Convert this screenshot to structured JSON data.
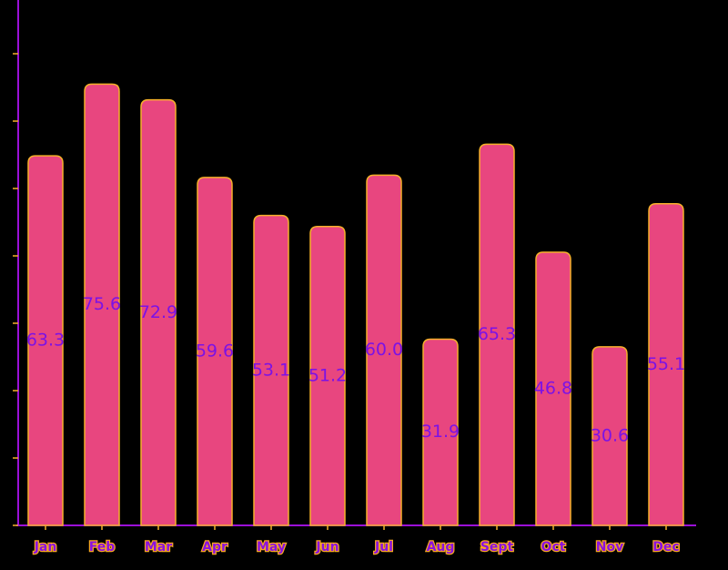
{
  "chart_data": {
    "type": "bar",
    "categories": [
      "Jan",
      "Feb",
      "Mar",
      "Apr",
      "May",
      "Jun",
      "Jul",
      "Aug",
      "Sept",
      "Oct",
      "Nov",
      "Dec"
    ],
    "values": [
      63.3,
      75.6,
      72.9,
      59.6,
      53.1,
      51.2,
      60.0,
      31.9,
      65.3,
      46.8,
      30.6,
      55.1
    ],
    "value_labels": [
      "63.3",
      "75.6",
      "72.9",
      "59.6",
      "53.1",
      "51.2",
      "60.0",
      "31.9",
      "65.3",
      "46.8",
      "30.6",
      "55.1"
    ],
    "title": "",
    "xlabel": "",
    "ylabel": "",
    "ylim": [
      0,
      90
    ],
    "grid": false,
    "colors": {
      "bar": "#e8467f",
      "bar_outline": "#f5b02a",
      "label": "#7b12e6",
      "axis": "#9b10d8"
    }
  }
}
